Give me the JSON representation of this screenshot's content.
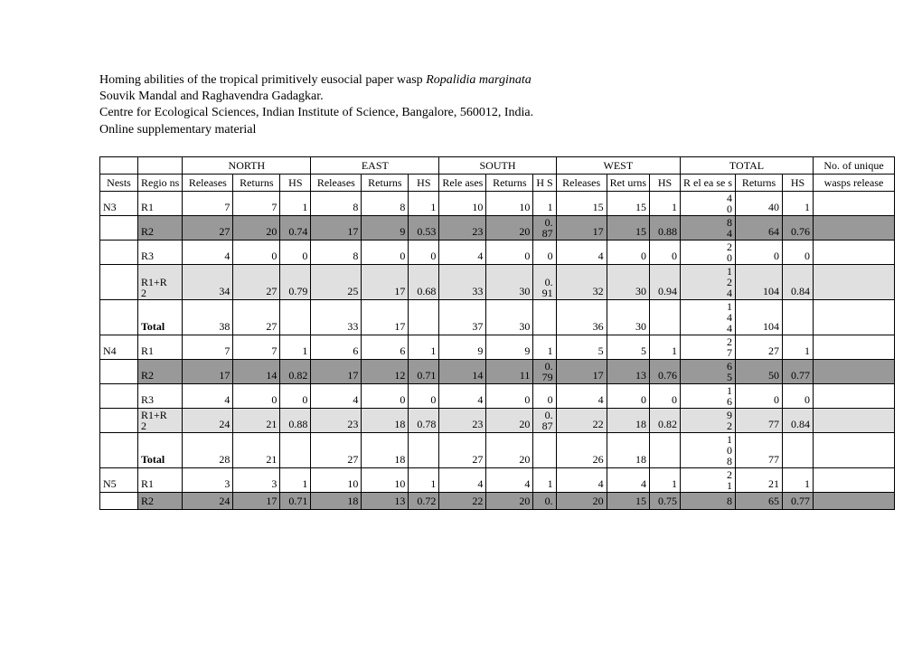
{
  "header": {
    "line1a": "Homing abilities of the tropical primitively eusocial paper wasp ",
    "line1b": "Ropalidia marginata",
    "line2": "Souvik Mandal and Raghavendra Gadagkar.",
    "line3": "Centre for Ecological Sciences, Indian Institute of Science, Bangalore, 560012, India.",
    "line4": "Online supplementary material"
  },
  "dir": {
    "n": "NORTH",
    "e": "EAST",
    "s": "SOUTH",
    "w": "WEST",
    "t": "TOTAL",
    "u": "No. of unique"
  },
  "sub": {
    "nests": "Nests",
    "reg": "Regio\nns",
    "rel": "Releases",
    "ret": "Returns",
    "hs": "HS",
    "sRel": "Rele\nases",
    "sRet": "Returns",
    "sHS": "H\nS",
    "wRet": "Ret\nurns",
    "tRel": "R\nel\nea\nse\ns",
    "uniq": "wasps release"
  },
  "rows": [
    {
      "nest": "N3",
      "reg": "R1",
      "shade": "",
      "n": [
        "7",
        "7",
        "1"
      ],
      "e": [
        "8",
        "8",
        "1"
      ],
      "s": [
        "10",
        "10",
        "1"
      ],
      "w": [
        "15",
        "15",
        "1"
      ],
      "t": [
        "4\n0",
        "40",
        "1"
      ]
    },
    {
      "nest": "",
      "reg": "R2",
      "shade": "dark",
      "n": [
        "27",
        "20",
        "0.74"
      ],
      "e": [
        "17",
        "9",
        "0.53"
      ],
      "s": [
        "23",
        "20",
        "0.\n87"
      ],
      "w": [
        "17",
        "15",
        "0.88"
      ],
      "t": [
        "8\n4",
        "64",
        "0.76"
      ]
    },
    {
      "nest": "",
      "reg": "R3",
      "shade": "",
      "n": [
        "4",
        "0",
        "0"
      ],
      "e": [
        "8",
        "0",
        "0"
      ],
      "s": [
        "4",
        "0",
        "0"
      ],
      "w": [
        "4",
        "0",
        "0"
      ],
      "t": [
        "2\n0",
        "0",
        "0"
      ]
    },
    {
      "nest": "",
      "reg": "R1+R\n2",
      "shade": "light",
      "n": [
        "34",
        "27",
        "0.79"
      ],
      "e": [
        "25",
        "17",
        "0.68"
      ],
      "s": [
        "33",
        "30",
        "0.\n91"
      ],
      "w": [
        "32",
        "30",
        "0.94"
      ],
      "t": [
        "1\n2\n4",
        "104",
        "0.84"
      ]
    },
    {
      "nest": "",
      "reg": "Total",
      "shade": "",
      "bold": true,
      "n": [
        "38",
        "27",
        ""
      ],
      "e": [
        "33",
        "17",
        ""
      ],
      "s": [
        "37",
        "30",
        ""
      ],
      "w": [
        "36",
        "30",
        ""
      ],
      "t": [
        "1\n4\n4",
        "104",
        ""
      ]
    },
    {
      "nest": "N4",
      "reg": "R1",
      "shade": "",
      "n": [
        "7",
        "7",
        "1"
      ],
      "e": [
        "6",
        "6",
        "1"
      ],
      "s": [
        "9",
        "9",
        "1"
      ],
      "w": [
        "5",
        "5",
        "1"
      ],
      "t": [
        "2\n7",
        "27",
        "1"
      ]
    },
    {
      "nest": "",
      "reg": "R2",
      "shade": "dark",
      "n": [
        "17",
        "14",
        "0.82"
      ],
      "e": [
        "17",
        "12",
        "0.71"
      ],
      "s": [
        "14",
        "11",
        "0.\n79"
      ],
      "w": [
        "17",
        "13",
        "0.76"
      ],
      "t": [
        "6\n5",
        "50",
        "0.77"
      ]
    },
    {
      "nest": "",
      "reg": "R3",
      "shade": "",
      "n": [
        "4",
        "0",
        "0"
      ],
      "e": [
        "4",
        "0",
        "0"
      ],
      "s": [
        "4",
        "0",
        "0"
      ],
      "w": [
        "4",
        "0",
        "0"
      ],
      "t": [
        "1\n6",
        "0",
        "0"
      ]
    },
    {
      "nest": "",
      "reg": "R1+R\n2",
      "shade": "light",
      "n": [
        "24",
        "21",
        "0.88"
      ],
      "e": [
        "23",
        "18",
        "0.78"
      ],
      "s": [
        "23",
        "20",
        "0.\n87"
      ],
      "w": [
        "22",
        "18",
        "0.82"
      ],
      "t": [
        "9\n2",
        "77",
        "0.84"
      ]
    },
    {
      "nest": "",
      "reg": "Total",
      "shade": "",
      "bold": true,
      "n": [
        "28",
        "21",
        ""
      ],
      "e": [
        "27",
        "18",
        ""
      ],
      "s": [
        "27",
        "20",
        ""
      ],
      "w": [
        "26",
        "18",
        ""
      ],
      "t": [
        "1\n0\n8",
        "77",
        ""
      ]
    },
    {
      "nest": "N5",
      "reg": "R1",
      "shade": "",
      "n": [
        "3",
        "3",
        "1"
      ],
      "e": [
        "10",
        "10",
        "1"
      ],
      "s": [
        "4",
        "4",
        "1"
      ],
      "w": [
        "4",
        "4",
        "1"
      ],
      "t": [
        "2\n1",
        "21",
        "1"
      ]
    },
    {
      "nest": "",
      "reg": "R2",
      "shade": "dark",
      "n": [
        "24",
        "17",
        "0.71"
      ],
      "e": [
        "18",
        "13",
        "0.72"
      ],
      "s": [
        "22",
        "20",
        "0."
      ],
      "w": [
        "20",
        "15",
        "0.75"
      ],
      "t": [
        "8",
        "65",
        "0.77"
      ]
    }
  ],
  "style": {
    "shade_dark": "#999999",
    "shade_light": "#e0e0e0",
    "font_family": "Times New Roman",
    "header_fontsize": 14,
    "table_fontsize": 12,
    "background": "#ffffff"
  }
}
